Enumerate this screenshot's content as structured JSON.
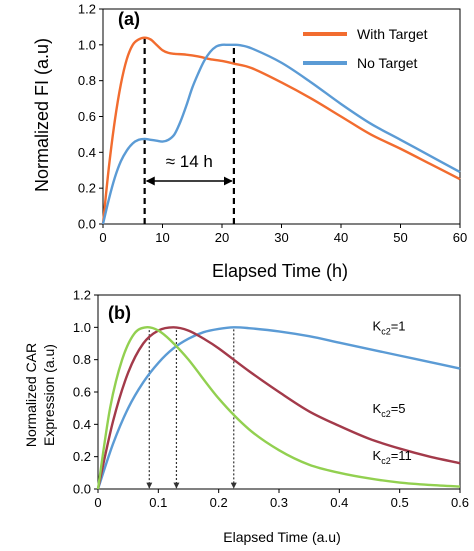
{
  "chart_data": [
    {
      "type": "line",
      "panel_label": "(a)",
      "xlabel": "Elapsed Time (h)",
      "ylabel": "Normalized FI (a.u)",
      "xlim": [
        0,
        60
      ],
      "ylim": [
        0,
        1.2
      ],
      "xticks": [
        "0",
        "10",
        "20",
        "30",
        "40",
        "50",
        "60"
      ],
      "yticks": [
        "0.0",
        "0.2",
        "0.4",
        "0.6",
        "0.8",
        "1.0",
        "1.2"
      ],
      "grid": false,
      "legend_position": "top-right",
      "series": [
        {
          "name": "With Target",
          "color": "#f26c2f",
          "x": [
            0,
            1,
            2,
            3,
            4,
            5,
            6,
            7,
            8,
            9,
            10,
            11,
            12,
            14,
            16,
            18,
            20,
            22,
            25,
            30,
            35,
            40,
            45,
            50,
            55,
            60
          ],
          "y": [
            0,
            0.32,
            0.58,
            0.78,
            0.92,
            1.0,
            1.03,
            1.04,
            1.03,
            1.0,
            0.97,
            0.955,
            0.95,
            0.945,
            0.935,
            0.92,
            0.91,
            0.895,
            0.87,
            0.79,
            0.7,
            0.6,
            0.5,
            0.42,
            0.335,
            0.25
          ]
        },
        {
          "name": "No Target",
          "color": "#5b9bd5",
          "x": [
            0,
            1,
            2,
            3,
            4,
            5,
            6,
            7,
            8,
            9,
            10,
            11,
            12,
            13,
            14,
            15,
            16,
            17,
            18,
            19,
            20,
            21,
            22,
            23,
            25,
            30,
            35,
            40,
            45,
            50,
            55,
            60
          ],
          "y": [
            0,
            0.14,
            0.26,
            0.35,
            0.41,
            0.45,
            0.47,
            0.475,
            0.47,
            0.465,
            0.46,
            0.47,
            0.5,
            0.57,
            0.66,
            0.76,
            0.84,
            0.91,
            0.96,
            0.99,
            1.0,
            1.0,
            1.0,
            0.998,
            0.98,
            0.9,
            0.79,
            0.67,
            0.56,
            0.47,
            0.38,
            0.29
          ]
        }
      ],
      "vlines_x": [
        7,
        22
      ],
      "annotation": {
        "text": "≈ 14 h",
        "from_x": 7,
        "to_x": 22,
        "y": 0.24
      }
    },
    {
      "type": "line",
      "panel_label": "(b)",
      "xlabel": "Elapsed Time (a.u)",
      "ylabel_lines": [
        "Normalized CAR",
        "Expression (a.u)"
      ],
      "xlim": [
        0,
        0.6
      ],
      "ylim": [
        0,
        1.2
      ],
      "xticks": [
        "0",
        "0.1",
        "0.2",
        "0.3",
        "0.4",
        "0.5",
        "0.6"
      ],
      "yticks": [
        "0.0",
        "0.2",
        "0.4",
        "0.6",
        "0.8",
        "1.0",
        "1.2"
      ],
      "grid": false,
      "series": [
        {
          "label_main": "K",
          "label_sub": "c2",
          "label_tail": "=1",
          "color": "#5b9bd5",
          "label_x": 0.455,
          "label_y": 0.98,
          "x": [
            0,
            0.025,
            0.05,
            0.075,
            0.1,
            0.125,
            0.15,
            0.175,
            0.2,
            0.225,
            0.25,
            0.3,
            0.35,
            0.4,
            0.45,
            0.5,
            0.55,
            0.6
          ],
          "y": [
            0,
            0.28,
            0.5,
            0.66,
            0.78,
            0.87,
            0.93,
            0.97,
            0.99,
            1.0,
            0.995,
            0.975,
            0.945,
            0.905,
            0.865,
            0.825,
            0.785,
            0.745
          ]
        },
        {
          "label_main": "K",
          "label_sub": "c2",
          "label_tail": "=5",
          "color": "#a33a4a",
          "label_x": 0.455,
          "label_y": 0.47,
          "x": [
            0,
            0.025,
            0.05,
            0.075,
            0.1,
            0.125,
            0.15,
            0.175,
            0.2,
            0.25,
            0.3,
            0.35,
            0.4,
            0.45,
            0.5,
            0.55,
            0.6
          ],
          "y": [
            0,
            0.42,
            0.72,
            0.9,
            0.98,
            1.0,
            0.98,
            0.93,
            0.87,
            0.73,
            0.6,
            0.48,
            0.39,
            0.31,
            0.25,
            0.2,
            0.16
          ]
        },
        {
          "label_main": "K",
          "label_sub": "c2",
          "label_tail": "=11",
          "color": "#92d050",
          "label_x": 0.455,
          "label_y": 0.18,
          "x": [
            0,
            0.02,
            0.04,
            0.06,
            0.08,
            0.1,
            0.12,
            0.15,
            0.2,
            0.25,
            0.3,
            0.35,
            0.4,
            0.45,
            0.5,
            0.55,
            0.6
          ],
          "y": [
            0,
            0.5,
            0.8,
            0.96,
            1.0,
            0.98,
            0.92,
            0.8,
            0.56,
            0.37,
            0.24,
            0.15,
            0.1,
            0.065,
            0.04,
            0.025,
            0.015
          ]
        }
      ],
      "arrow_x": [
        0.085,
        0.13,
        0.225
      ]
    }
  ]
}
